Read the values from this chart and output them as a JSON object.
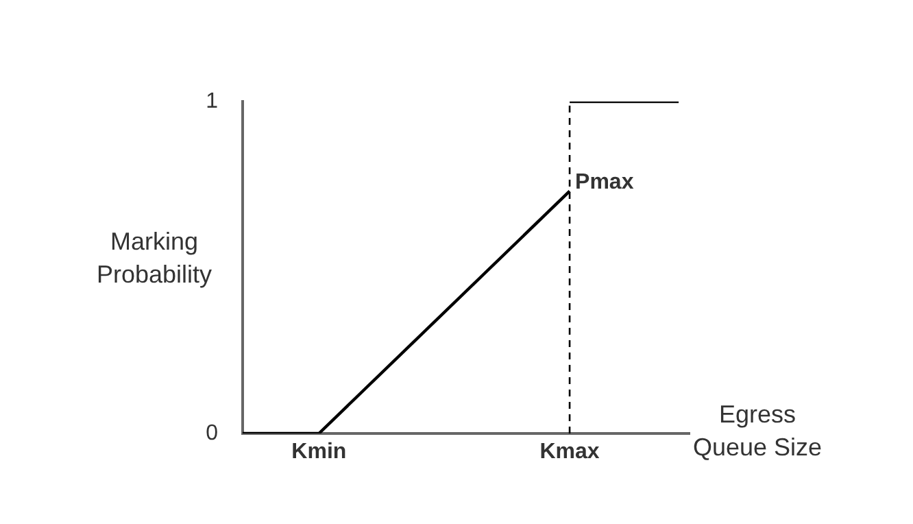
{
  "chart_data": {
    "type": "line",
    "xlabel": "Egress Queue Size",
    "ylabel": "Marking Probability",
    "categories": [
      null,
      null,
      null,
      null,
      null,
      null,
      null,
      "Kmin",
      null,
      null,
      null,
      null,
      null,
      null,
      null,
      null,
      null,
      null,
      null,
      null,
      null,
      null,
      null,
      null,
      null,
      null,
      null,
      null,
      null,
      null,
      "Kmax",
      null,
      null,
      null,
      null,
      null,
      null,
      null,
      null,
      null,
      null,
      null
    ],
    "series": [
      {
        "values": [
          0,
          null,
          null,
          null,
          null,
          null,
          null,
          0,
          null,
          null,
          null,
          null,
          null,
          null,
          null,
          null,
          null,
          null,
          null,
          null,
          null,
          null,
          null,
          null,
          null,
          null,
          null,
          null,
          null,
          null,
          0.73,
          null,
          null,
          null,
          null,
          null,
          null,
          null,
          null,
          null,
          null,
          null
        ],
        "color": "#000000"
      },
      {
        "values": [
          null,
          null,
          null,
          null,
          null,
          null,
          null,
          null,
          null,
          null,
          null,
          null,
          null,
          null,
          null,
          null,
          null,
          null,
          null,
          null,
          null,
          null,
          null,
          null,
          null,
          null,
          null,
          null,
          null,
          null,
          1,
          null,
          null,
          null,
          null,
          null,
          null,
          null,
          null,
          null,
          1,
          null
        ],
        "color": "#000000"
      }
    ],
    "ylim": [
      0,
      1
    ],
    "yticks": [
      0,
      1
    ],
    "grid": false,
    "marker": "none",
    "ref_lines": [
      {
        "axis": "x",
        "value": "Kmax",
        "color": "#000000",
        "line_style": "dashed"
      }
    ],
    "annotations": [
      {
        "text": "Pmax",
        "x": "Kmax",
        "y": 0.73
      }
    ]
  }
}
